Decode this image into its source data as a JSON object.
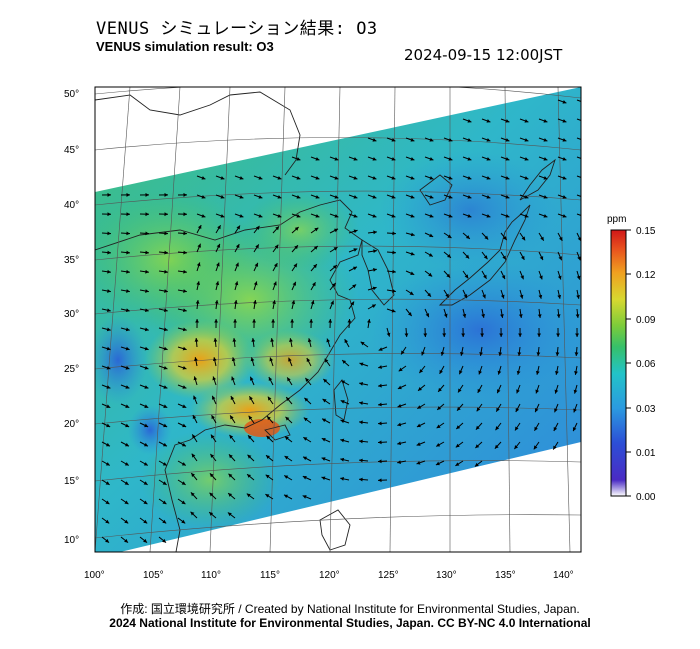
{
  "header": {
    "title_jp": "VENUS シミュレーション結果: O3",
    "title_en": "VENUS simulation result: O3",
    "timestamp": "2024-09-15 12:00JST"
  },
  "map": {
    "lat_labels": [
      "50°",
      "45°",
      "40°",
      "35°",
      "30°",
      "25°",
      "20°",
      "15°",
      "10°"
    ],
    "lon_labels": [
      "100°",
      "105°",
      "110°",
      "115°",
      "120°",
      "125°",
      "130°",
      "135°",
      "140°"
    ],
    "field": "O3 concentration",
    "wind_vectors": "shown as arrows"
  },
  "colorbar": {
    "unit": "ppm",
    "labels": [
      "0.15",
      "0.12",
      "0.09",
      "0.06",
      "0.03",
      "0.01",
      "0.00"
    ],
    "colors": [
      "#d7191c",
      "#f46d43",
      "#fdae61",
      "#fee08b",
      "#d9ef8b",
      "#66bd63",
      "#1a9850",
      "#22c3c8",
      "#2b83ba",
      "#2c4fd6",
      "#4a2bc4",
      "#ffffff"
    ]
  },
  "footer": {
    "credit": "作成: 国立環境研究所 / Created by National Institute for Environmental Studies, Japan.",
    "license": "2024 National Institute for Environmental Studies, Japan. CC BY-NC 4.0 International"
  },
  "colors": {
    "low": "#2f6fd6",
    "mid": "#36b2d8",
    "green": "#4ec24e",
    "yellow": "#d8d830",
    "high": "#e09020"
  }
}
